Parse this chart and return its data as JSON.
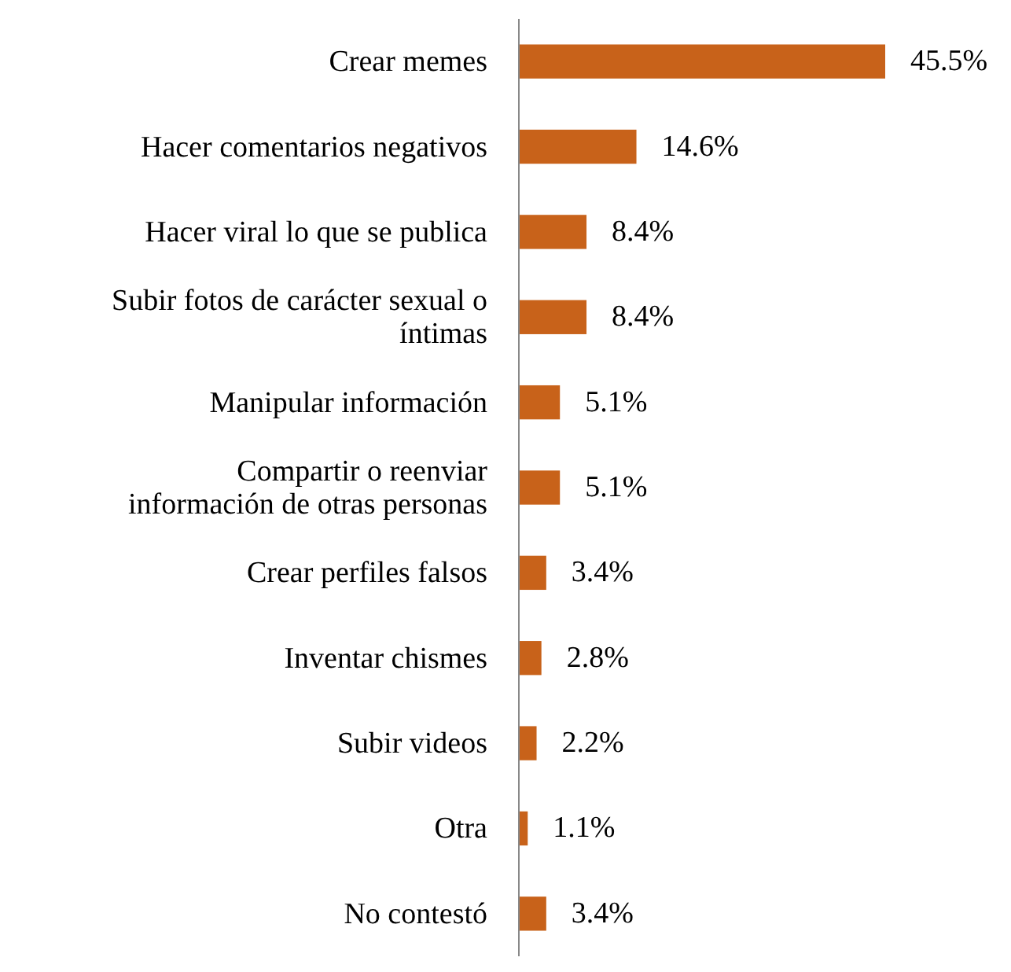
{
  "chart_data": {
    "type": "bar",
    "orientation": "horizontal",
    "categories": [
      "Crear memes",
      "Hacer comentarios negativos",
      "Hacer viral lo que se publica",
      "Subir fotos de carácter sexual o\níntimas",
      "Manipular información",
      "Compartir o reenviar\ninformación de otras personas",
      "Crear perfiles falsos",
      "Inventar chismes",
      "Subir videos",
      "Otra",
      "No contestó"
    ],
    "values": [
      45.5,
      14.6,
      8.4,
      8.4,
      5.1,
      5.1,
      3.4,
      2.8,
      2.2,
      1.1,
      3.4
    ],
    "value_labels": [
      "45.5%",
      "14.6%",
      "8.4%",
      "8.4%",
      "5.1%",
      "5.1%",
      "3.4%",
      "2.8%",
      "2.2%",
      "1.1%",
      "3.4%"
    ],
    "color": "#c8621a"
  }
}
